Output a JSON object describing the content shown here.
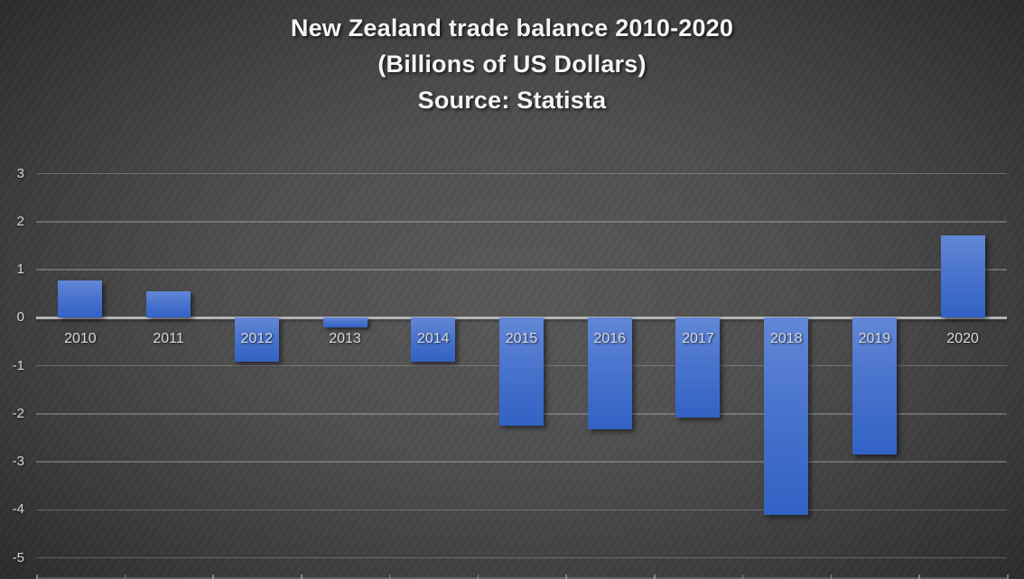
{
  "chart_data": {
    "type": "bar",
    "title": "New Zealand trade balance 2010-2020",
    "subtitle": "(Billions of US Dollars)",
    "source_line": "Source: Statista",
    "categories": [
      "2010",
      "2011",
      "2012",
      "2013",
      "2014",
      "2015",
      "2016",
      "2017",
      "2018",
      "2019",
      "2020"
    ],
    "values": [
      0.77,
      0.55,
      -0.91,
      -0.21,
      -0.92,
      -2.24,
      -2.33,
      -2.07,
      -4.11,
      -2.84,
      1.71
    ],
    "xlabel": "",
    "ylabel": "",
    "ylim": [
      -5,
      3
    ],
    "yticks": [
      3,
      2,
      1,
      0,
      -1,
      -2,
      -3,
      -4,
      -5
    ],
    "grid": true,
    "legend": "none",
    "colors": {
      "bar_gradient_top": "#6287d6",
      "bar_gradient_mid": "#4a74cd",
      "bar_gradient_bottom": "#3262c5",
      "zero_axis_line": "#b4b4b4",
      "gridline": "#6e6e6e",
      "tick_label": "#d6d6d6",
      "category_label": "#dadada",
      "title_text": "#f4f4f4",
      "background_center": "#595959",
      "background_edge": "#282828"
    }
  }
}
